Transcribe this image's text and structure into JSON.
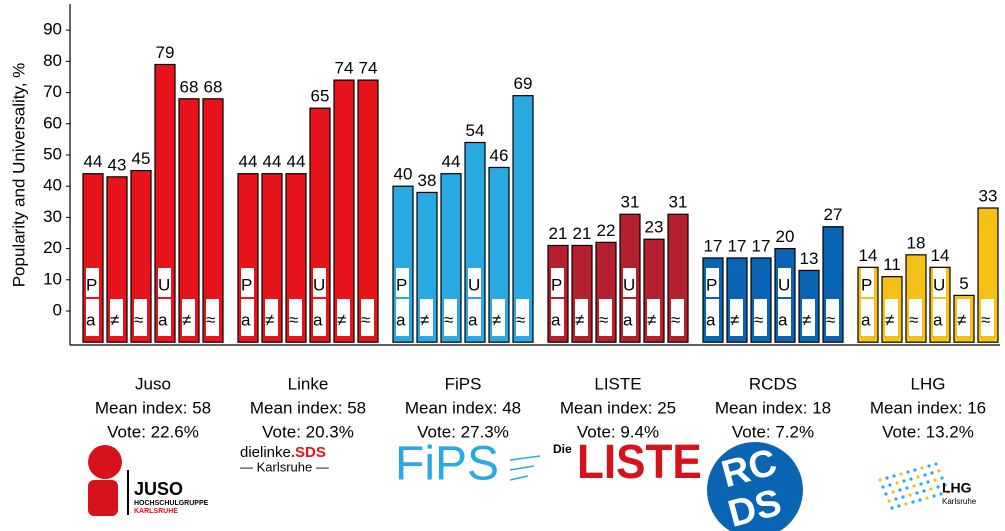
{
  "chart_data": {
    "type": "bar",
    "ylabel": "Popularity and Universality, %",
    "ylim": [
      -10,
      98
    ],
    "yticks": [
      0,
      10,
      20,
      30,
      40,
      50,
      60,
      70,
      80,
      90
    ],
    "sublabels": {
      "group": [
        "P",
        "U"
      ],
      "bar": [
        "a",
        "≠",
        "≈",
        "a",
        "≠",
        "≈"
      ]
    },
    "groups": [
      {
        "name": "Juso",
        "lines": [
          "Mean index: 58",
          "Vote: 22.6%"
        ],
        "color": "#e8141c",
        "values": [
          44,
          43,
          45,
          79,
          68,
          68
        ]
      },
      {
        "name": "Linke",
        "lines": [
          "Mean index: 58",
          "Vote: 20.3%"
        ],
        "color": "#e8141c",
        "values": [
          44,
          44,
          44,
          65,
          74,
          74
        ]
      },
      {
        "name": "FiPS",
        "lines": [
          "Mean index: 48",
          "Vote: 27.3%"
        ],
        "color": "#29a9e1",
        "values": [
          40,
          38,
          44,
          54,
          46,
          69
        ]
      },
      {
        "name": "LISTE",
        "lines": [
          "Mean index: 25",
          "Vote: 9.4%"
        ],
        "color": "#b5202e",
        "values": [
          21,
          21,
          22,
          31,
          23,
          31
        ]
      },
      {
        "name": "RCDS",
        "lines": [
          "Mean index: 18",
          "Vote: 7.2%"
        ],
        "color": "#0a64b4",
        "values": [
          17,
          17,
          17,
          20,
          13,
          27
        ]
      },
      {
        "name": "LHG",
        "lines": [
          "Mean index: 16",
          "Vote: 13.2%"
        ],
        "color": "#f5c116",
        "values": [
          14,
          11,
          18,
          14,
          5,
          33
        ]
      }
    ]
  },
  "logos": [
    [
      "JUSO",
      "HOCHSCHULGRUPPE",
      "KARLSRUHE"
    ],
    [
      "dielinke",
      ".SDS",
      "— Karlsruhe —"
    ],
    [
      "FiPS"
    ],
    [
      "Die",
      "LISTE"
    ],
    [
      "RC",
      "DS"
    ],
    [
      "LHG",
      "Karlsruhe"
    ]
  ]
}
